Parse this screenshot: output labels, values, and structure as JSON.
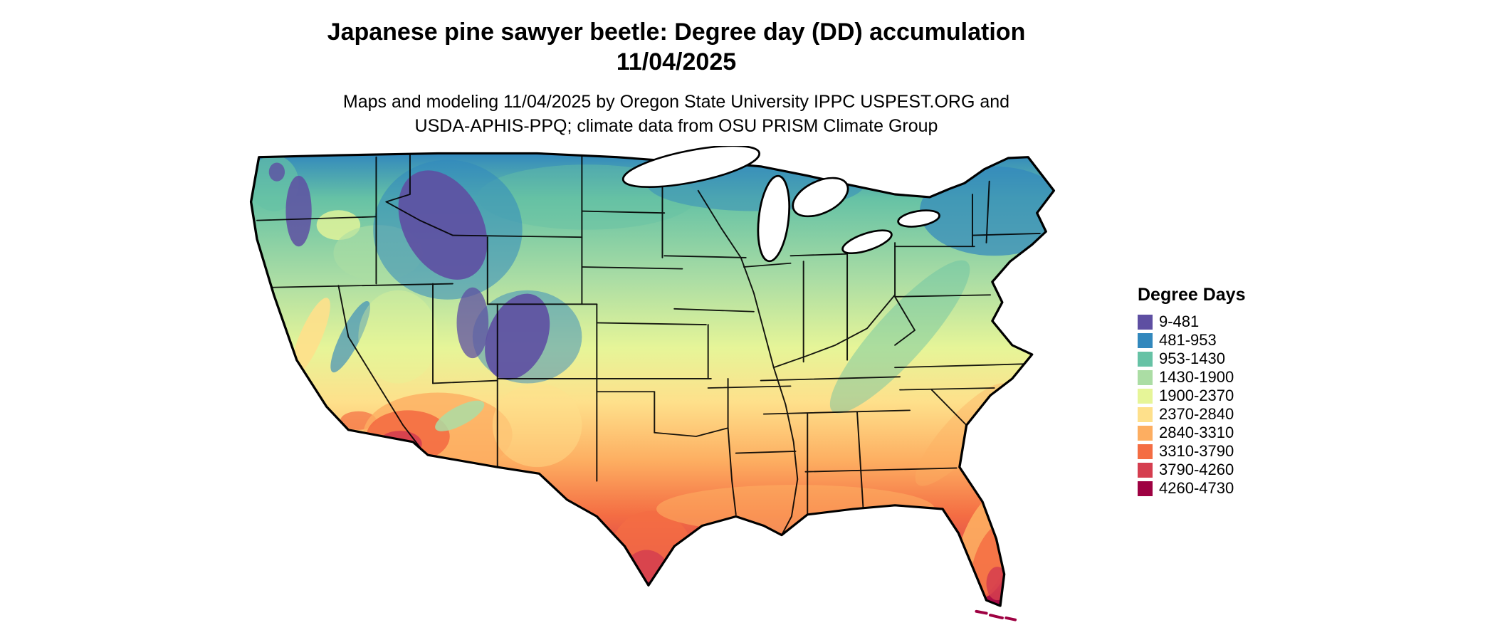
{
  "title": {
    "line1": "Japanese pine sawyer beetle: Degree day (DD) accumulation",
    "line2": "11/04/2025"
  },
  "subtitle": {
    "line1": "Maps and modeling 11/04/2025 by Oregon State University IPPC USPEST.ORG and",
    "line2": "USDA-APHIS-PPQ; climate data from OSU PRISM Climate Group"
  },
  "map": {
    "name": "Continental United States degree-day accumulation raster map with state borders"
  },
  "legend": {
    "title": "Degree Days",
    "items": [
      {
        "label": "9-481",
        "color": "#5e4fa2"
      },
      {
        "label": "481-953",
        "color": "#3288bd"
      },
      {
        "label": "953-1430",
        "color": "#66c2a5"
      },
      {
        "label": "1430-1900",
        "color": "#abdda4"
      },
      {
        "label": "1900-2370",
        "color": "#e6f598"
      },
      {
        "label": "2370-2840",
        "color": "#fee08b"
      },
      {
        "label": "2840-3310",
        "color": "#fdae61"
      },
      {
        "label": "3310-3790",
        "color": "#f46d43"
      },
      {
        "label": "3790-4260",
        "color": "#d53e4f"
      },
      {
        "label": "4260-4730",
        "color": "#9e0142"
      }
    ]
  }
}
